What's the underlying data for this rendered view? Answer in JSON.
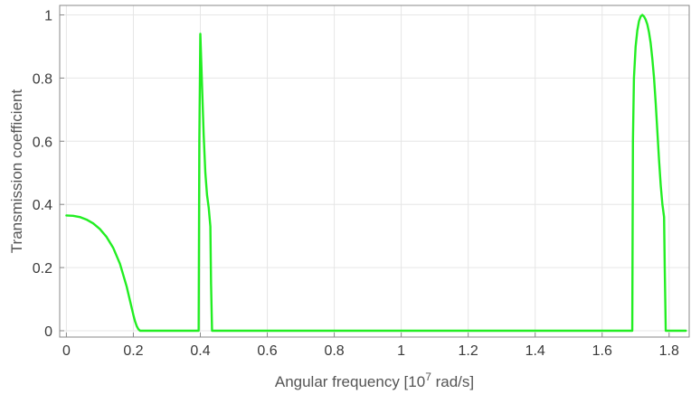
{
  "chart_data": {
    "type": "line",
    "title": "",
    "xlabel": "Angular frequency [10",
    "xlabel_superscript": "7",
    "xlabel_suffix": " rad/s]",
    "ylabel": "Transmission coefficient",
    "xlim": [
      -0.02,
      1.86
    ],
    "ylim": [
      -0.02,
      1.03
    ],
    "x_ticks": [
      0,
      0.2,
      0.4,
      0.6,
      0.8,
      1,
      1.2,
      1.4,
      1.6,
      1.8
    ],
    "x_tick_labels": [
      "0",
      "0.2",
      "0.4",
      "0.6",
      "0.8",
      "1",
      "1.2",
      "1.4",
      "1.6",
      "1.8"
    ],
    "y_ticks": [
      0,
      0.2,
      0.4,
      0.6,
      0.8,
      1
    ],
    "y_tick_labels": [
      "0",
      "0.2",
      "0.4",
      "0.6",
      "0.8",
      "1"
    ],
    "grid": true,
    "series": [
      {
        "color": "#22ee22",
        "x": [
          0,
          0.02,
          0.04,
          0.06,
          0.08,
          0.1,
          0.12,
          0.14,
          0.16,
          0.18,
          0.19,
          0.2,
          0.205,
          0.21,
          0.215,
          0.22,
          0.26,
          0.3,
          0.35,
          0.395,
          0.397,
          0.4,
          0.405,
          0.41,
          0.415,
          0.42,
          0.425,
          0.43,
          0.432,
          0.435,
          0.6,
          0.8,
          1.0,
          1.2,
          1.4,
          1.6,
          1.69,
          1.692,
          1.695,
          1.7,
          1.705,
          1.71,
          1.715,
          1.72,
          1.725,
          1.73,
          1.735,
          1.74,
          1.745,
          1.75,
          1.755,
          1.76,
          1.765,
          1.77,
          1.775,
          1.78,
          1.785,
          1.787,
          1.79,
          1.82,
          1.85
        ],
        "y": [
          0.365,
          0.364,
          0.36,
          0.352,
          0.34,
          0.322,
          0.297,
          0.262,
          0.212,
          0.14,
          0.095,
          0.05,
          0.03,
          0.015,
          0.005,
          0,
          0,
          0,
          0,
          0,
          0.6,
          0.94,
          0.78,
          0.62,
          0.5,
          0.43,
          0.39,
          0.33,
          0.15,
          0,
          0,
          0,
          0,
          0,
          0,
          0,
          0,
          0.6,
          0.8,
          0.9,
          0.95,
          0.98,
          0.995,
          1.0,
          0.995,
          0.985,
          0.97,
          0.945,
          0.91,
          0.86,
          0.8,
          0.72,
          0.63,
          0.54,
          0.46,
          0.4,
          0.36,
          0.2,
          0,
          0,
          0
        ]
      }
    ]
  }
}
